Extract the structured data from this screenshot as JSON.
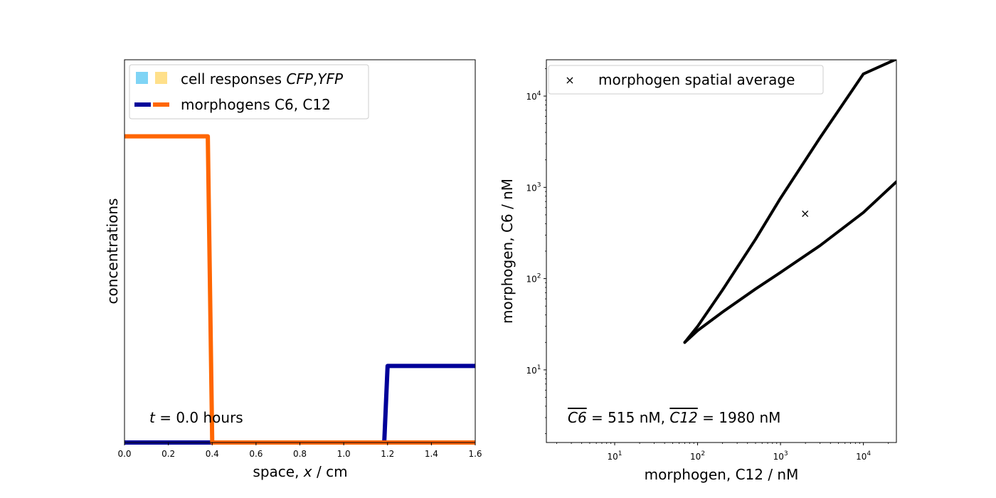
{
  "chart_data": [
    {
      "type": "line",
      "xlabel_parts": [
        "space, ",
        "x",
        " / cm"
      ],
      "ylabel": "concentrations",
      "xlim": [
        0.0,
        1.6
      ],
      "ylim": [
        0,
        1.25
      ],
      "xticks": [
        "0.0",
        "0.2",
        "0.4",
        "0.6",
        "0.8",
        "1.0",
        "1.2",
        "1.4",
        "1.6"
      ],
      "series": [
        {
          "name": "C6",
          "color": "#000099",
          "x": [
            0.0,
            1.185,
            1.2,
            1.6
          ],
          "y": [
            0.0,
            0.0,
            0.25,
            0.25
          ]
        },
        {
          "name": "C12",
          "color": "#ff6600",
          "x": [
            0.0,
            0.38,
            0.4,
            1.6
          ],
          "y": [
            1.0,
            1.0,
            0.0,
            0.0
          ]
        }
      ],
      "legend": {
        "placement": "upper-left",
        "entries": [
          {
            "label_parts": [
              "cell responses ",
              "CFP",
              ",",
              "YFP"
            ],
            "colors": [
              "#7fd4f5",
              "#ffe08a"
            ]
          },
          {
            "label": "morphogens C6, C12",
            "colors": [
              "#000099",
              "#ff6600"
            ]
          }
        ]
      },
      "annotation": {
        "parts": [
          "t",
          " = 0.0 hours"
        ]
      }
    },
    {
      "type": "line",
      "scale": "log-log",
      "xlabel": "morphogen, C12 / nM",
      "ylabel": "morphogen, C6 / nM",
      "xlim": [
        1.5,
        25000
      ],
      "ylim": [
        1.6,
        25000
      ],
      "xticks": [
        {
          "base": "10",
          "exp": "1",
          "v": 10
        },
        {
          "base": "10",
          "exp": "2",
          "v": 100
        },
        {
          "base": "10",
          "exp": "3",
          "v": 1000
        },
        {
          "base": "10",
          "exp": "4",
          "v": 10000
        }
      ],
      "yticks": [
        {
          "base": "10",
          "exp": "1",
          "v": 10
        },
        {
          "base": "10",
          "exp": "2",
          "v": 100
        },
        {
          "base": "10",
          "exp": "3",
          "v": 1000
        },
        {
          "base": "10",
          "exp": "4",
          "v": 10000
        }
      ],
      "series": [
        {
          "name": "upper boundary",
          "color": "#000000",
          "x": [
            70,
            100,
            200,
            500,
            1000,
            3000,
            10000,
            24000
          ],
          "y": [
            20,
            30,
            75,
            270,
            760,
            3500,
            17500,
            25000
          ]
        },
        {
          "name": "lower boundary",
          "color": "#000000",
          "x": [
            70,
            100,
            200,
            500,
            1000,
            3000,
            10000,
            25000
          ],
          "y": [
            20,
            27,
            43,
            77,
            117,
            230,
            530,
            1150
          ]
        }
      ],
      "point": {
        "x": 1980,
        "y": 515,
        "marker": "×"
      },
      "legend": {
        "placement": "upper-left",
        "entries": [
          {
            "label": "morphogen spatial average",
            "marker": "×"
          }
        ]
      },
      "annotation": {
        "c6_sym": "C6",
        "c6_text": " = 515 nM, ",
        "c12_sym": "C12",
        "c12_text": " = 1980 nM"
      }
    }
  ]
}
